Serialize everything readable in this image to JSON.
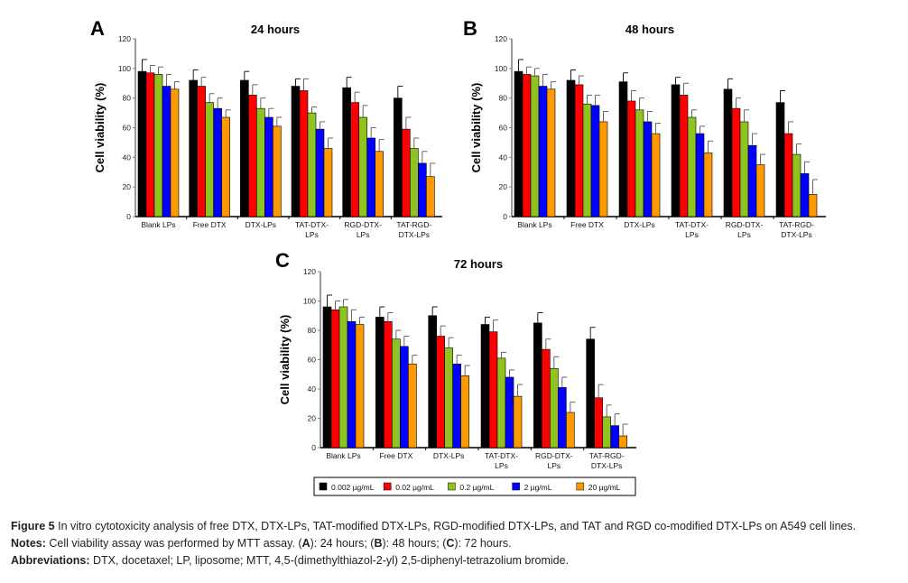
{
  "chart_data": [
    {
      "type": "bar",
      "panel_label": "A",
      "title": "24 hours",
      "xlabel": "",
      "ylabel": "Cell viability (%)",
      "ylim": [
        0,
        120
      ],
      "yticks": [
        0,
        20,
        40,
        60,
        80,
        100,
        120
      ],
      "categories": [
        "Blank LPs",
        "Free DTX",
        "DTX-LPs",
        "TAT-DTX-LPs",
        "RGD-DTX-LPs",
        "TAT-RGD-DTX-LPs"
      ],
      "category_lines": [
        [
          "Blank LPs"
        ],
        [
          "Free DTX"
        ],
        [
          "DTX-LPs"
        ],
        [
          "TAT-DTX-",
          "LPs"
        ],
        [
          "RGD-DTX-",
          "LPs"
        ],
        [
          "TAT-RGD-",
          "DTX-LPs"
        ]
      ],
      "series": [
        {
          "name": "0.002 µg/mL",
          "color": "#000000",
          "values": [
            98,
            92,
            92,
            88,
            87,
            80
          ],
          "errors": [
            8,
            7,
            6,
            5,
            7,
            8
          ]
        },
        {
          "name": "0.02 µg/mL",
          "color": "#ff0000",
          "values": [
            97,
            88,
            82,
            85,
            77,
            59
          ],
          "errors": [
            5,
            6,
            7,
            8,
            7,
            8
          ]
        },
        {
          "name": "0.2 µg/mL",
          "color": "#8fc31f",
          "values": [
            96,
            77,
            73,
            70,
            67,
            46
          ],
          "errors": [
            5,
            6,
            7,
            4,
            8,
            7
          ]
        },
        {
          "name": "2 µg/mL",
          "color": "#0000ff",
          "values": [
            88,
            73,
            67,
            59,
            53,
            36
          ],
          "errors": [
            8,
            7,
            6,
            5,
            7,
            8
          ]
        },
        {
          "name": "20 µg/mL",
          "color": "#ff9900",
          "values": [
            86,
            67,
            61,
            46,
            44,
            27
          ],
          "errors": [
            5,
            5,
            6,
            7,
            8,
            9
          ]
        }
      ],
      "grid": false
    },
    {
      "type": "bar",
      "panel_label": "B",
      "title": "48 hours",
      "xlabel": "",
      "ylabel": "Cell viability (%)",
      "ylim": [
        0,
        120
      ],
      "yticks": [
        0,
        20,
        40,
        60,
        80,
        100,
        120
      ],
      "categories": [
        "Blank LPs",
        "Free DTX",
        "DTX-LPs",
        "TAT-DTX-LPs",
        "RGD-DTX-LPs",
        "TAT-RGD-DTX-LPs"
      ],
      "category_lines": [
        [
          "Blank LPs"
        ],
        [
          "Free DTX"
        ],
        [
          "DTX-LPs"
        ],
        [
          "TAT-DTX-",
          "LPs"
        ],
        [
          "RGD-DTX-",
          "LPs"
        ],
        [
          "TAT-RGD-",
          "DTX-LPs"
        ]
      ],
      "series": [
        {
          "name": "0.002 µg/mL",
          "color": "#000000",
          "values": [
            98,
            92,
            91,
            89,
            86,
            77
          ],
          "errors": [
            8,
            7,
            6,
            5,
            7,
            8
          ]
        },
        {
          "name": "0.02 µg/mL",
          "color": "#ff0000",
          "values": [
            96,
            89,
            78,
            82,
            73,
            56
          ],
          "errors": [
            5,
            6,
            7,
            8,
            7,
            8
          ]
        },
        {
          "name": "0.2 µg/mL",
          "color": "#8fc31f",
          "values": [
            95,
            76,
            72,
            67,
            64,
            42
          ],
          "errors": [
            5,
            6,
            8,
            5,
            8,
            7
          ]
        },
        {
          "name": "2 µg/mL",
          "color": "#0000ff",
          "values": [
            88,
            75,
            64,
            56,
            48,
            29
          ],
          "errors": [
            8,
            7,
            7,
            5,
            8,
            8
          ]
        },
        {
          "name": "20 µg/mL",
          "color": "#ff9900",
          "values": [
            86,
            64,
            56,
            43,
            35,
            15
          ],
          "errors": [
            5,
            7,
            7,
            8,
            7,
            10
          ]
        }
      ],
      "grid": false
    },
    {
      "type": "bar",
      "panel_label": "C",
      "title": "72 hours",
      "xlabel": "",
      "ylabel": "Cell viability (%)",
      "ylim": [
        0,
        120
      ],
      "yticks": [
        0,
        20,
        40,
        60,
        80,
        100,
        120
      ],
      "categories": [
        "Blank LPs",
        "Free DTX",
        "DTX-LPs",
        "TAT-DTX-LPs",
        "RGD-DTX-LPs",
        "TAT-RGD-DTX-LPs"
      ],
      "category_lines": [
        [
          "Blank LPs"
        ],
        [
          "Free DTX"
        ],
        [
          "DTX-LPs"
        ],
        [
          "TAT-DTX-",
          "LPs"
        ],
        [
          "RGD-DTX-",
          "LPs"
        ],
        [
          "TAT-RGD-",
          "DTX-LPs"
        ]
      ],
      "series": [
        {
          "name": "0.002 µg/mL",
          "color": "#000000",
          "values": [
            96,
            89,
            90,
            84,
            85,
            74
          ],
          "errors": [
            8,
            7,
            6,
            5,
            7,
            8
          ]
        },
        {
          "name": "0.02 µg/mL",
          "color": "#ff0000",
          "values": [
            94,
            86,
            76,
            79,
            67,
            34
          ],
          "errors": [
            6,
            6,
            7,
            8,
            7,
            9
          ]
        },
        {
          "name": "0.2 µg/mL",
          "color": "#8fc31f",
          "values": [
            96,
            74,
            68,
            61,
            54,
            21
          ],
          "errors": [
            5,
            6,
            7,
            4,
            8,
            8
          ]
        },
        {
          "name": "2 µg/mL",
          "color": "#0000ff",
          "values": [
            86,
            69,
            57,
            48,
            41,
            15
          ],
          "errors": [
            8,
            7,
            6,
            5,
            7,
            8
          ]
        },
        {
          "name": "20 µg/mL",
          "color": "#ff9900",
          "values": [
            84,
            57,
            49,
            35,
            24,
            8
          ],
          "errors": [
            5,
            6,
            7,
            8,
            7,
            8
          ]
        }
      ],
      "legend": {
        "placement": "bottom"
      },
      "grid": false
    }
  ],
  "caption": {
    "figure_label": "Figure 5",
    "figure_text": " In vitro cytotoxicity analysis of free DTX, DTX-LPs, TAT-modified DTX-LPs, RGD-modified DTX-LPs, and TAT and RGD co-modified DTX-LPs on A549 cell lines.",
    "notes_label": "Notes:",
    "notes_text_1": " Cell viability assay was performed by MTT assay. (",
    "notes_A": "A",
    "notes_text_2": "): 24 hours; (",
    "notes_B": "B",
    "notes_text_3": "): 48 hours; (",
    "notes_C": "C",
    "notes_text_4": "): 72 hours.",
    "abbrev_label": "Abbreviations:",
    "abbrev_text": " DTX, docetaxel; LP, liposome; MTT, 4,5-(dimethylthiazol-2-yl) 2,5-diphenyl-tetrazolium bromide."
  }
}
